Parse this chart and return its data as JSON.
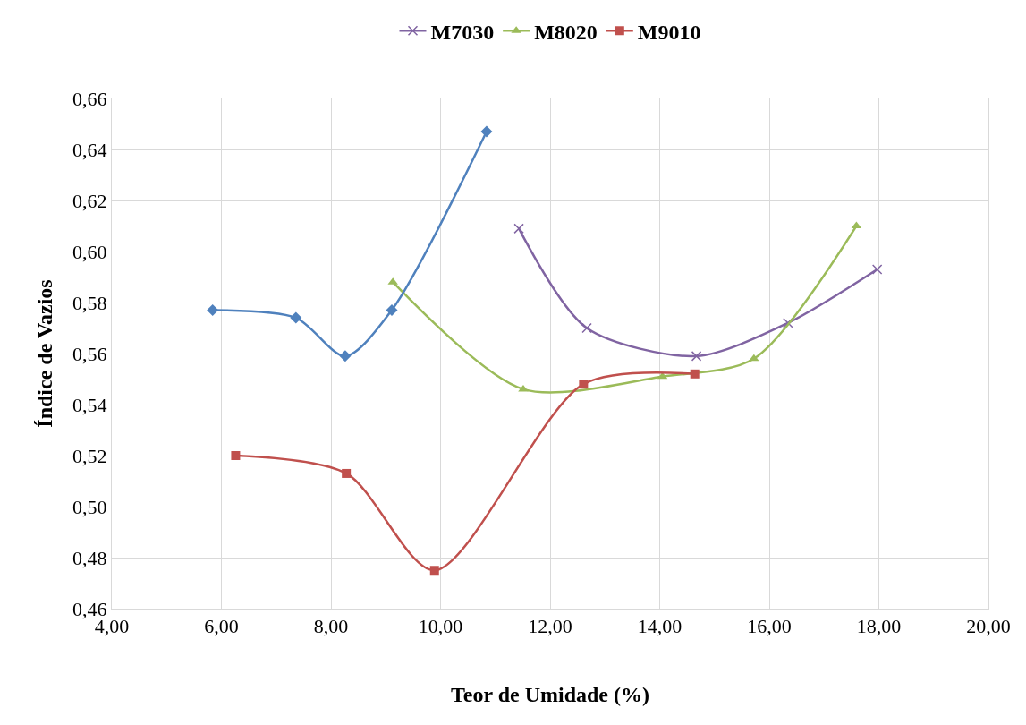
{
  "chart_data": {
    "type": "line",
    "xlabel": "Teor de Umidade (%)",
    "ylabel": "Índice de Vazios",
    "xlim": [
      4,
      20
    ],
    "xticks": [
      {
        "value": 4,
        "label": "4,00"
      },
      {
        "value": 6,
        "label": "6,00"
      },
      {
        "value": 8,
        "label": "8,00"
      },
      {
        "value": 10,
        "label": "10,00"
      },
      {
        "value": 12,
        "label": "12,00"
      },
      {
        "value": 14,
        "label": "14,00"
      },
      {
        "value": 16,
        "label": "16,00"
      },
      {
        "value": 18,
        "label": "18,00"
      },
      {
        "value": 20,
        "label": "20,00"
      }
    ],
    "ylim": [
      0.46,
      0.66
    ],
    "yticks": [
      {
        "value": 0.46,
        "label": "0,46"
      },
      {
        "value": 0.48,
        "label": "0,48"
      },
      {
        "value": 0.5,
        "label": "0,50"
      },
      {
        "value": 0.52,
        "label": "0,52"
      },
      {
        "value": 0.54,
        "label": "0,54"
      },
      {
        "value": 0.56,
        "label": "0,56"
      },
      {
        "value": 0.58,
        "label": "0,58"
      },
      {
        "value": 0.6,
        "label": "0,60"
      },
      {
        "value": 0.62,
        "label": "0,62"
      },
      {
        "value": 0.64,
        "label": "0,64"
      },
      {
        "value": 0.66,
        "label": "0,66"
      }
    ],
    "grid": true,
    "legend": "top",
    "line_style": "solid",
    "series": [
      {
        "name": "M7030",
        "color": "#8064a2",
        "marker": "cross",
        "x": [
          11.43,
          12.67,
          14.67,
          16.34,
          17.97
        ],
        "values": [
          0.609,
          0.57,
          0.559,
          0.572,
          0.593
        ]
      },
      {
        "name": "M8020",
        "color": "#9bbb59",
        "marker": "triangle",
        "x": [
          9.13,
          11.51,
          14.05,
          15.72,
          17.59
        ],
        "values": [
          0.588,
          0.546,
          0.551,
          0.558,
          0.61
        ]
      },
      {
        "name": "M9010",
        "color": "#c0504d",
        "marker": "square",
        "x": [
          6.26,
          8.28,
          9.89,
          12.61,
          14.64
        ],
        "values": [
          0.52,
          0.513,
          0.475,
          0.548,
          0.552
        ]
      },
      {
        "color": "#4f81bd",
        "marker": "diamond",
        "x": [
          5.84,
          7.36,
          8.26,
          9.11,
          10.84
        ],
        "values": [
          0.577,
          0.574,
          0.559,
          0.577,
          0.647
        ]
      }
    ]
  }
}
